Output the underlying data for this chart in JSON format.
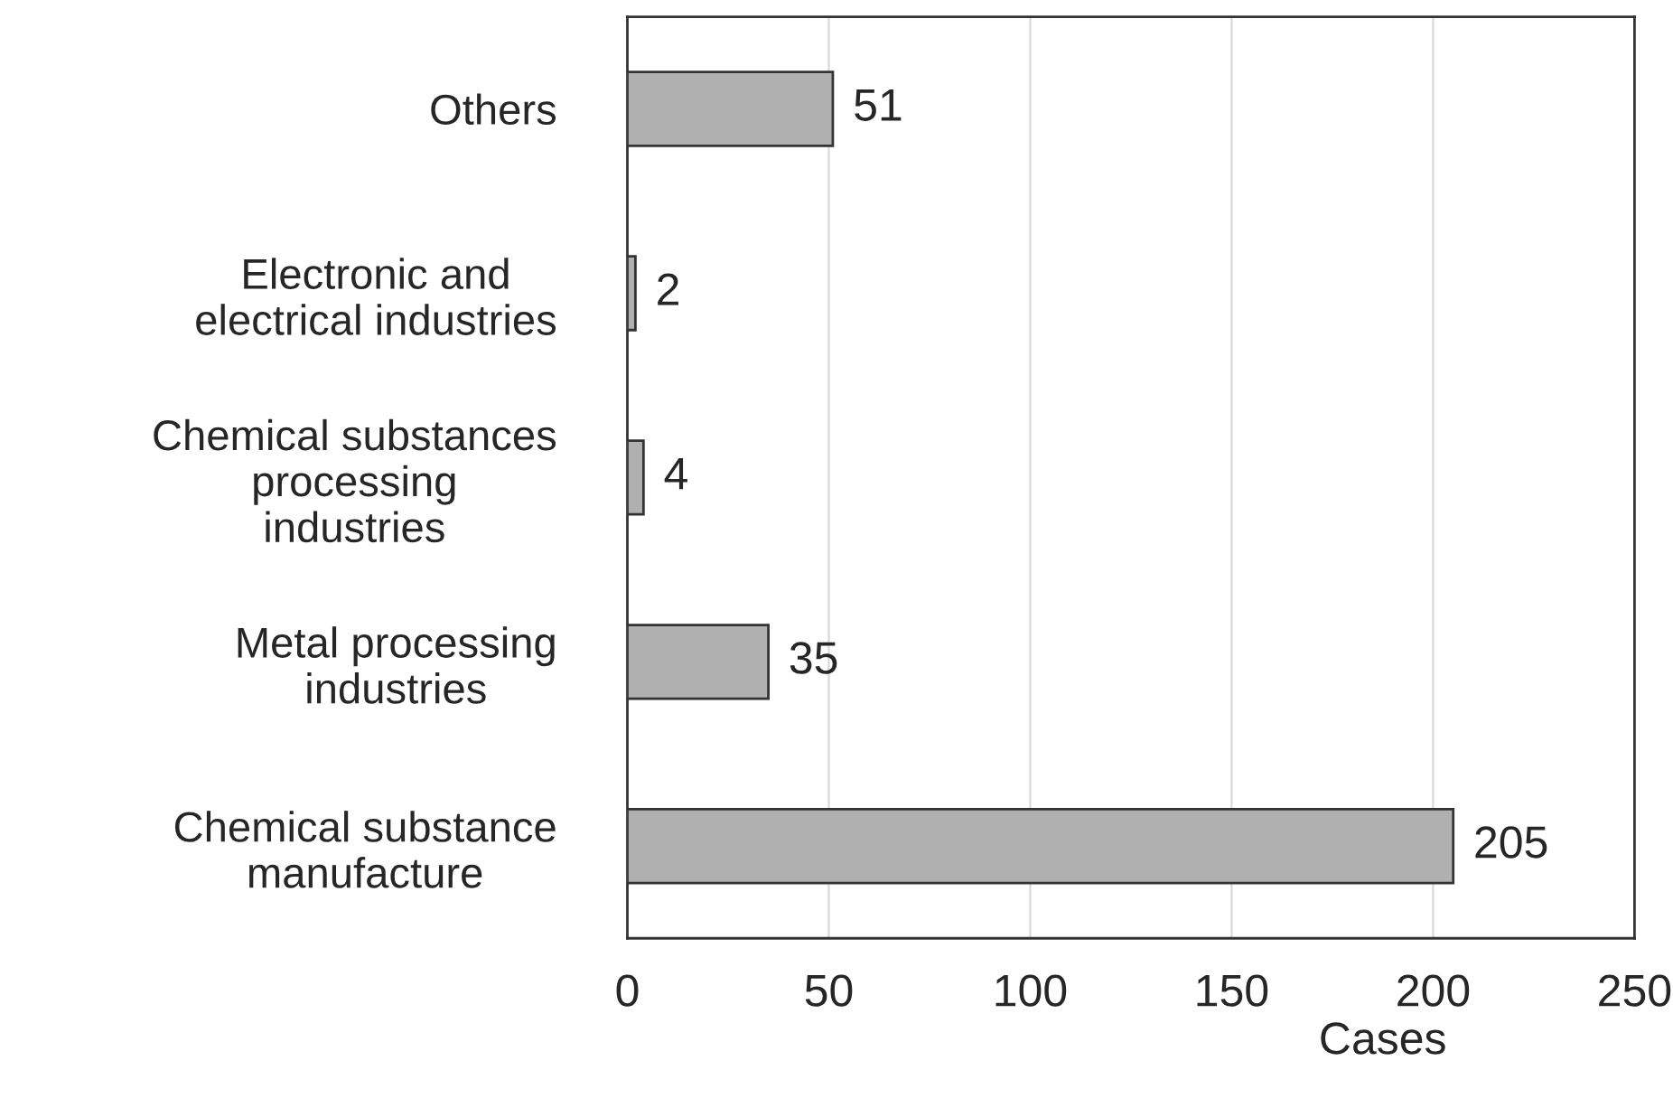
{
  "chart_data": {
    "type": "bar",
    "orientation": "horizontal",
    "categories": [
      "Others",
      "Electronic and\nelectrical industries",
      "Chemical substances\nprocessing\nindustries",
      "Metal processing\nindustries",
      "Chemical substance\nmanufacture"
    ],
    "values": [
      51,
      2,
      4,
      35,
      205
    ],
    "color": "#b0b0b0",
    "xlabel": "Cases",
    "xlim": [
      0,
      250
    ],
    "xticks": [
      0,
      50,
      100,
      150,
      200,
      250
    ],
    "grid": "x",
    "data_labels": true
  }
}
